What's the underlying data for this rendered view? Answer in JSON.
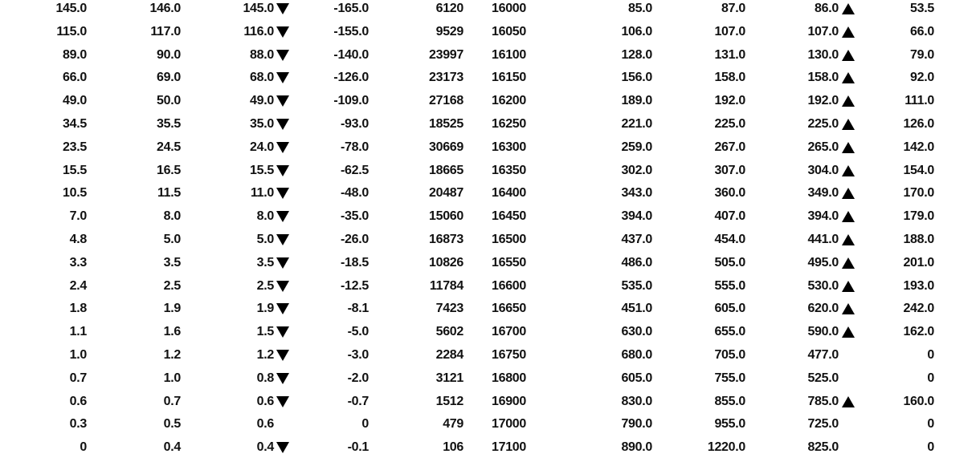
{
  "colors": {
    "text": "#111111",
    "arrow": "#000000"
  },
  "rows": [
    {
      "put_bid": "145.0",
      "put_ask": "146.0",
      "put_last": "145.0",
      "put_dir": "down",
      "put_change": "-165.0",
      "put_volume": "6120",
      "strike": "16000",
      "call_bid": "85.0",
      "call_ask": "87.0",
      "call_last": "86.0",
      "call_dir": "up",
      "call_change": "53.5"
    },
    {
      "put_bid": "115.0",
      "put_ask": "117.0",
      "put_last": "116.0",
      "put_dir": "down",
      "put_change": "-155.0",
      "put_volume": "9529",
      "strike": "16050",
      "call_bid": "106.0",
      "call_ask": "107.0",
      "call_last": "107.0",
      "call_dir": "up",
      "call_change": "66.0"
    },
    {
      "put_bid": "89.0",
      "put_ask": "90.0",
      "put_last": "88.0",
      "put_dir": "down",
      "put_change": "-140.0",
      "put_volume": "23997",
      "strike": "16100",
      "call_bid": "128.0",
      "call_ask": "131.0",
      "call_last": "130.0",
      "call_dir": "up",
      "call_change": "79.0"
    },
    {
      "put_bid": "66.0",
      "put_ask": "69.0",
      "put_last": "68.0",
      "put_dir": "down",
      "put_change": "-126.0",
      "put_volume": "23173",
      "strike": "16150",
      "call_bid": "156.0",
      "call_ask": "158.0",
      "call_last": "158.0",
      "call_dir": "up",
      "call_change": "92.0"
    },
    {
      "put_bid": "49.0",
      "put_ask": "50.0",
      "put_last": "49.0",
      "put_dir": "down",
      "put_change": "-109.0",
      "put_volume": "27168",
      "strike": "16200",
      "call_bid": "189.0",
      "call_ask": "192.0",
      "call_last": "192.0",
      "call_dir": "up",
      "call_change": "111.0"
    },
    {
      "put_bid": "34.5",
      "put_ask": "35.5",
      "put_last": "35.0",
      "put_dir": "down",
      "put_change": "-93.0",
      "put_volume": "18525",
      "strike": "16250",
      "call_bid": "221.0",
      "call_ask": "225.0",
      "call_last": "225.0",
      "call_dir": "up",
      "call_change": "126.0"
    },
    {
      "put_bid": "23.5",
      "put_ask": "24.5",
      "put_last": "24.0",
      "put_dir": "down",
      "put_change": "-78.0",
      "put_volume": "30669",
      "strike": "16300",
      "call_bid": "259.0",
      "call_ask": "267.0",
      "call_last": "265.0",
      "call_dir": "up",
      "call_change": "142.0"
    },
    {
      "put_bid": "15.5",
      "put_ask": "16.5",
      "put_last": "15.5",
      "put_dir": "down",
      "put_change": "-62.5",
      "put_volume": "18665",
      "strike": "16350",
      "call_bid": "302.0",
      "call_ask": "307.0",
      "call_last": "304.0",
      "call_dir": "up",
      "call_change": "154.0"
    },
    {
      "put_bid": "10.5",
      "put_ask": "11.5",
      "put_last": "11.0",
      "put_dir": "down",
      "put_change": "-48.0",
      "put_volume": "20487",
      "strike": "16400",
      "call_bid": "343.0",
      "call_ask": "360.0",
      "call_last": "349.0",
      "call_dir": "up",
      "call_change": "170.0"
    },
    {
      "put_bid": "7.0",
      "put_ask": "8.0",
      "put_last": "8.0",
      "put_dir": "down",
      "put_change": "-35.0",
      "put_volume": "15060",
      "strike": "16450",
      "call_bid": "394.0",
      "call_ask": "407.0",
      "call_last": "394.0",
      "call_dir": "up",
      "call_change": "179.0"
    },
    {
      "put_bid": "4.8",
      "put_ask": "5.0",
      "put_last": "5.0",
      "put_dir": "down",
      "put_change": "-26.0",
      "put_volume": "16873",
      "strike": "16500",
      "call_bid": "437.0",
      "call_ask": "454.0",
      "call_last": "441.0",
      "call_dir": "up",
      "call_change": "188.0"
    },
    {
      "put_bid": "3.3",
      "put_ask": "3.5",
      "put_last": "3.5",
      "put_dir": "down",
      "put_change": "-18.5",
      "put_volume": "10826",
      "strike": "16550",
      "call_bid": "486.0",
      "call_ask": "505.0",
      "call_last": "495.0",
      "call_dir": "up",
      "call_change": "201.0"
    },
    {
      "put_bid": "2.4",
      "put_ask": "2.5",
      "put_last": "2.5",
      "put_dir": "down",
      "put_change": "-12.5",
      "put_volume": "11784",
      "strike": "16600",
      "call_bid": "535.0",
      "call_ask": "555.0",
      "call_last": "530.0",
      "call_dir": "up",
      "call_change": "193.0"
    },
    {
      "put_bid": "1.8",
      "put_ask": "1.9",
      "put_last": "1.9",
      "put_dir": "down",
      "put_change": "-8.1",
      "put_volume": "7423",
      "strike": "16650",
      "call_bid": "451.0",
      "call_ask": "605.0",
      "call_last": "620.0",
      "call_dir": "up",
      "call_change": "242.0"
    },
    {
      "put_bid": "1.1",
      "put_ask": "1.6",
      "put_last": "1.5",
      "put_dir": "down",
      "put_change": "-5.0",
      "put_volume": "5602",
      "strike": "16700",
      "call_bid": "630.0",
      "call_ask": "655.0",
      "call_last": "590.0",
      "call_dir": "up",
      "call_change": "162.0"
    },
    {
      "put_bid": "1.0",
      "put_ask": "1.2",
      "put_last": "1.2",
      "put_dir": "down",
      "put_change": "-3.0",
      "put_volume": "2284",
      "strike": "16750",
      "call_bid": "680.0",
      "call_ask": "705.0",
      "call_last": "477.0",
      "call_dir": "none",
      "call_change": "0"
    },
    {
      "put_bid": "0.7",
      "put_ask": "1.0",
      "put_last": "0.8",
      "put_dir": "down",
      "put_change": "-2.0",
      "put_volume": "3121",
      "strike": "16800",
      "call_bid": "605.0",
      "call_ask": "755.0",
      "call_last": "525.0",
      "call_dir": "none",
      "call_change": "0"
    },
    {
      "put_bid": "0.6",
      "put_ask": "0.7",
      "put_last": "0.6",
      "put_dir": "down",
      "put_change": "-0.7",
      "put_volume": "1512",
      "strike": "16900",
      "call_bid": "830.0",
      "call_ask": "855.0",
      "call_last": "785.0",
      "call_dir": "up",
      "call_change": "160.0"
    },
    {
      "put_bid": "0.3",
      "put_ask": "0.5",
      "put_last": "0.6",
      "put_dir": "none",
      "put_change": "0",
      "put_volume": "479",
      "strike": "17000",
      "call_bid": "790.0",
      "call_ask": "955.0",
      "call_last": "725.0",
      "call_dir": "none",
      "call_change": "0"
    },
    {
      "put_bid": "0",
      "put_ask": "0.4",
      "put_last": "0.4",
      "put_dir": "down",
      "put_change": "-0.1",
      "put_volume": "106",
      "strike": "17100",
      "call_bid": "890.0",
      "call_ask": "1220.0",
      "call_last": "825.0",
      "call_dir": "none",
      "call_change": "0"
    }
  ]
}
